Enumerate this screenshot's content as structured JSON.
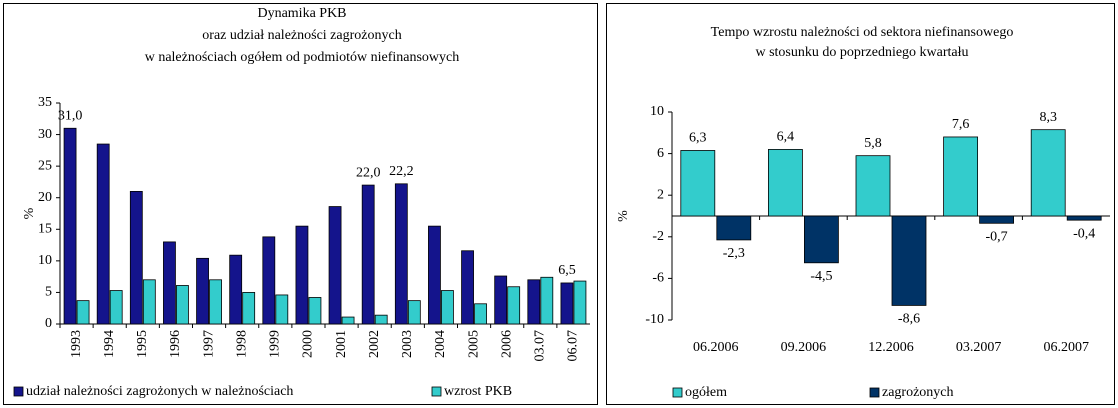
{
  "chart_data": [
    {
      "type": "bar",
      "title": [
        "Dynamika PKB",
        "oraz udział należności zagrożonych",
        "w należnościach ogółem od podmiotów niefinansowych"
      ],
      "y_label": "%",
      "categories": [
        "1993",
        "1994",
        "1995",
        "1996",
        "1997",
        "1998",
        "1999",
        "2000",
        "2001",
        "2002",
        "2003",
        "2004",
        "2005",
        "2006",
        "03.07",
        "06.07"
      ],
      "series": [
        {
          "name": "udział należności zagrożonych w należnościach",
          "color": "#14148c",
          "values": [
            31.0,
            28.5,
            21.0,
            13.0,
            10.4,
            10.9,
            13.8,
            15.5,
            18.6,
            22.0,
            22.2,
            15.5,
            11.6,
            7.6,
            7.0,
            6.5
          ],
          "value_labels": [
            "31,0",
            null,
            null,
            null,
            null,
            null,
            null,
            null,
            null,
            "22,0",
            "22,2",
            null,
            null,
            null,
            null,
            "6,5"
          ]
        },
        {
          "name": "wzrost PKB",
          "color": "#33cccc",
          "values": [
            3.7,
            5.3,
            7.0,
            6.1,
            7.0,
            5.0,
            4.6,
            4.2,
            1.1,
            1.4,
            3.7,
            5.3,
            3.2,
            5.9,
            7.4,
            6.8
          ]
        }
      ],
      "ylim": [
        0,
        35
      ],
      "yticks": [
        0,
        5,
        10,
        15,
        20,
        25,
        30,
        35
      ]
    },
    {
      "type": "bar",
      "title": [
        "Tempo wzrostu należności od sektora niefinansowego",
        "w stosunku do poprzedniego kwartału"
      ],
      "y_label": "%",
      "categories": [
        "06.2006",
        "09.2006",
        "12.2006",
        "03.2007",
        "06.2007"
      ],
      "series": [
        {
          "name": "ogółem",
          "color": "#33cccc",
          "values": [
            6.3,
            6.4,
            5.8,
            7.6,
            8.3
          ],
          "value_labels": [
            "6,3",
            "6,4",
            "5,8",
            "7,6",
            "8,3"
          ]
        },
        {
          "name": "zagrożonych",
          "color": "#003366",
          "values": [
            -2.3,
            -4.5,
            -8.6,
            -0.7,
            -0.4
          ],
          "value_labels": [
            "-2,3",
            "-4,5",
            "-8,6",
            "-0,7",
            "-0,4"
          ]
        }
      ],
      "ylim": [
        -10,
        10
      ],
      "yticks": [
        -10,
        -6,
        -2,
        2,
        6,
        10
      ]
    }
  ]
}
